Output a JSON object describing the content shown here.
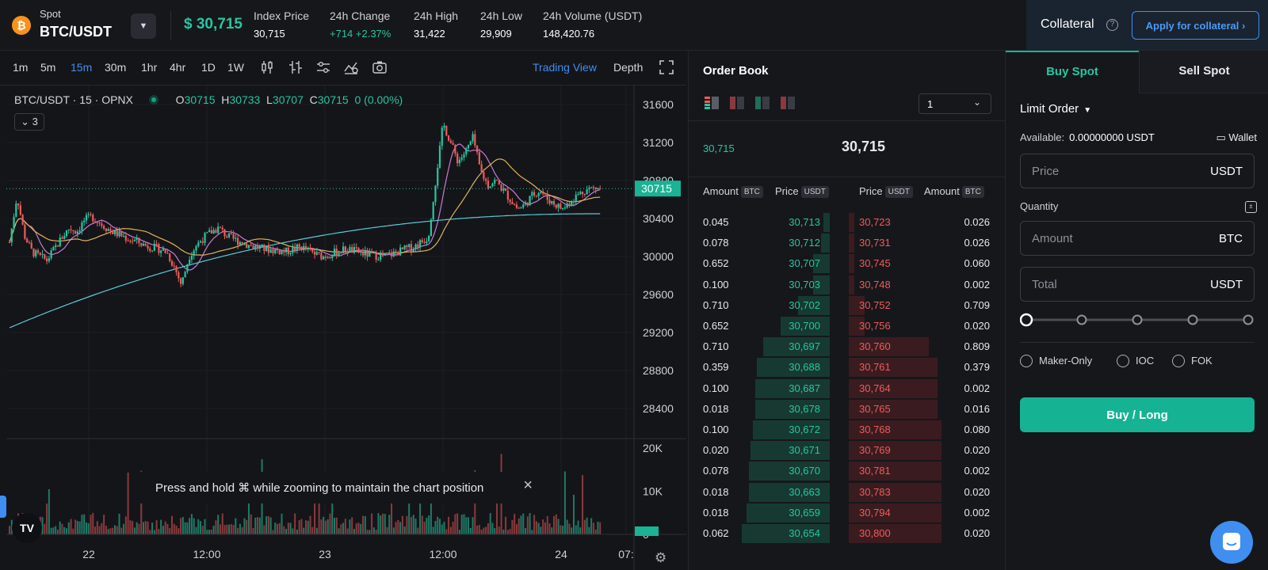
{
  "header": {
    "market_label": "Spot",
    "pair": "BTC/USDT",
    "last_price": "$ 30,715",
    "stats": [
      {
        "label": "Index Price",
        "value": "30,715",
        "tone": "neutral"
      },
      {
        "label": "24h Change",
        "value": "+714  +2.37%",
        "tone": "up"
      },
      {
        "label": "24h High",
        "value": "31,422",
        "tone": "neutral"
      },
      {
        "label": "24h Low",
        "value": "29,909",
        "tone": "neutral"
      },
      {
        "label": "24h Volume (USDT)",
        "value": "148,420.76",
        "tone": "neutral"
      }
    ],
    "collateral_label": "Collateral",
    "apply_collateral_label": "Apply for collateral ›"
  },
  "chart": {
    "intervals": [
      "1m",
      "5m",
      "15m",
      "30m",
      "1hr",
      "4hr",
      "1D",
      "1W"
    ],
    "active_interval": "15m",
    "trading_view_label": "Trading View",
    "depth_label": "Depth",
    "legend_symbol": "BTC/USDT · 15 · OPNX",
    "ohlc": {
      "o": "30715",
      "h": "30733",
      "l": "30707",
      "c": "30715",
      "chg": "0 (0.00%)"
    },
    "indicator_toggle": "⌄ 3",
    "price_ticks": [
      "31600",
      "31200",
      "30800",
      "30400",
      "30000",
      "29600",
      "29200",
      "28800",
      "28400"
    ],
    "current_price_tag": "30715",
    "volume_ticks": [
      "20K",
      "10K",
      "0"
    ],
    "time_ticks": [
      "22",
      "12:00",
      "23",
      "12:00",
      "24",
      "07:"
    ],
    "zoom_toast": "Press and hold ⌘ while zooming to maintain the chart position",
    "tv_logo": "TV"
  },
  "chart_data": {
    "type": "candlestick",
    "symbol": "BTC/USDT",
    "interval": "15",
    "ylim": [
      28200,
      31800
    ],
    "last": 30715,
    "x_labels": [
      "22",
      "12:00",
      "23",
      "12:00",
      "24",
      "07:"
    ],
    "close_path": [
      30150,
      30640,
      30220,
      30050,
      30000,
      29960,
      30080,
      30200,
      30300,
      30260,
      30380,
      30420,
      30360,
      30300,
      30250,
      30220,
      30180,
      30160,
      30120,
      30100,
      30080,
      30050,
      29900,
      29700,
      30000,
      30120,
      30200,
      30260,
      30300,
      30220,
      30180,
      30150,
      30120,
      30100,
      30080,
      30070,
      30060,
      30050,
      30080,
      30100,
      30060,
      30020,
      30000,
      30030,
      30050,
      30080,
      30060,
      30040,
      30020,
      30010,
      30000,
      30020,
      30050,
      30080,
      30100,
      30150,
      30200,
      30800,
      31400,
      31200,
      31000,
      31100,
      31250,
      30900,
      30750,
      30800,
      30700,
      30600,
      30500,
      30550,
      30650,
      30700,
      30600,
      30550,
      30500,
      30580,
      30650,
      30700,
      30720,
      30715
    ],
    "ma_slow_start": 29250,
    "ma_slow_end": 30450,
    "volume_unit": "K",
    "volume_ylim": [
      0,
      22
    ]
  },
  "orderbook": {
    "title": "Order Book",
    "precision": "1",
    "mid_small": "30,715",
    "mid_big": "30,715",
    "headers": {
      "amount": "Amount",
      "price": "Price",
      "btc": "BTC",
      "usdt": "USDT"
    },
    "rows": [
      {
        "bid_amt": "0.045",
        "bid_price": "30,713",
        "ask_price": "30,723",
        "ask_amt": "0.026",
        "bid_depth": 0.0,
        "ask_depth": 0.01
      },
      {
        "bid_amt": "0.078",
        "bid_price": "30,712",
        "ask_price": "30,731",
        "ask_amt": "0.026",
        "bid_depth": 0.01,
        "ask_depth": 0.01
      },
      {
        "bid_amt": "0.652",
        "bid_price": "30,707",
        "ask_price": "30,745",
        "ask_amt": "0.060",
        "bid_depth": 0.05,
        "ask_depth": 0.01
      },
      {
        "bid_amt": "0.100",
        "bid_price": "30,703",
        "ask_price": "30,748",
        "ask_amt": "0.002",
        "bid_depth": 0.05,
        "ask_depth": 0.01
      },
      {
        "bid_amt": "0.710",
        "bid_price": "30,702",
        "ask_price": "30,752",
        "ask_amt": "0.709",
        "bid_depth": 0.12,
        "ask_depth": 0.06
      },
      {
        "bid_amt": "0.652",
        "bid_price": "30,700",
        "ask_price": "30,756",
        "ask_amt": "0.020",
        "bid_depth": 0.2,
        "ask_depth": 0.06
      },
      {
        "bid_amt": "0.710",
        "bid_price": "30,697",
        "ask_price": "30,760",
        "ask_amt": "0.809",
        "bid_depth": 0.28,
        "ask_depth": 0.36
      },
      {
        "bid_amt": "0.359",
        "bid_price": "30,688",
        "ask_price": "30,761",
        "ask_amt": "0.379",
        "bid_depth": 0.31,
        "ask_depth": 0.4
      },
      {
        "bid_amt": "0.100",
        "bid_price": "30,687",
        "ask_price": "30,764",
        "ask_amt": "0.002",
        "bid_depth": 0.32,
        "ask_depth": 0.4
      },
      {
        "bid_amt": "0.018",
        "bid_price": "30,678",
        "ask_price": "30,765",
        "ask_amt": "0.016",
        "bid_depth": 0.32,
        "ask_depth": 0.4
      },
      {
        "bid_amt": "0.100",
        "bid_price": "30,672",
        "ask_price": "30,768",
        "ask_amt": "0.080",
        "bid_depth": 0.33,
        "ask_depth": 0.42
      },
      {
        "bid_amt": "0.020",
        "bid_price": "30,671",
        "ask_price": "30,769",
        "ask_amt": "0.020",
        "bid_depth": 0.34,
        "ask_depth": 0.42
      },
      {
        "bid_amt": "0.078",
        "bid_price": "30,670",
        "ask_price": "30,781",
        "ask_amt": "0.002",
        "bid_depth": 0.35,
        "ask_depth": 0.42
      },
      {
        "bid_amt": "0.018",
        "bid_price": "30,663",
        "ask_price": "30,783",
        "ask_amt": "0.020",
        "bid_depth": 0.35,
        "ask_depth": 0.42
      },
      {
        "bid_amt": "0.018",
        "bid_price": "30,659",
        "ask_price": "30,794",
        "ask_amt": "0.002",
        "bid_depth": 0.36,
        "ask_depth": 0.42
      },
      {
        "bid_amt": "0.062",
        "bid_price": "30,654",
        "ask_price": "30,800",
        "ask_amt": "0.020",
        "bid_depth": 0.38,
        "ask_depth": 0.42
      }
    ]
  },
  "trade": {
    "buy_tab": "Buy Spot",
    "sell_tab": "Sell Spot",
    "order_type": "Limit Order",
    "available_label": "Available:",
    "available_value": "0.00000000 USDT",
    "wallet_label": "Wallet",
    "price_placeholder": "Price",
    "price_unit": "USDT",
    "quantity_label": "Quantity",
    "amount_placeholder": "Amount",
    "amount_unit": "BTC",
    "total_placeholder": "Total",
    "total_unit": "USDT",
    "slider_level": 0,
    "tif_options": [
      "Maker-Only",
      "IOC",
      "FOK"
    ],
    "buy_button": "Buy / Long"
  },
  "colors": {
    "up": "#26c6a1",
    "down": "#ee5b5b",
    "accent": "#3f8ef0",
    "buy": "#15b394"
  }
}
